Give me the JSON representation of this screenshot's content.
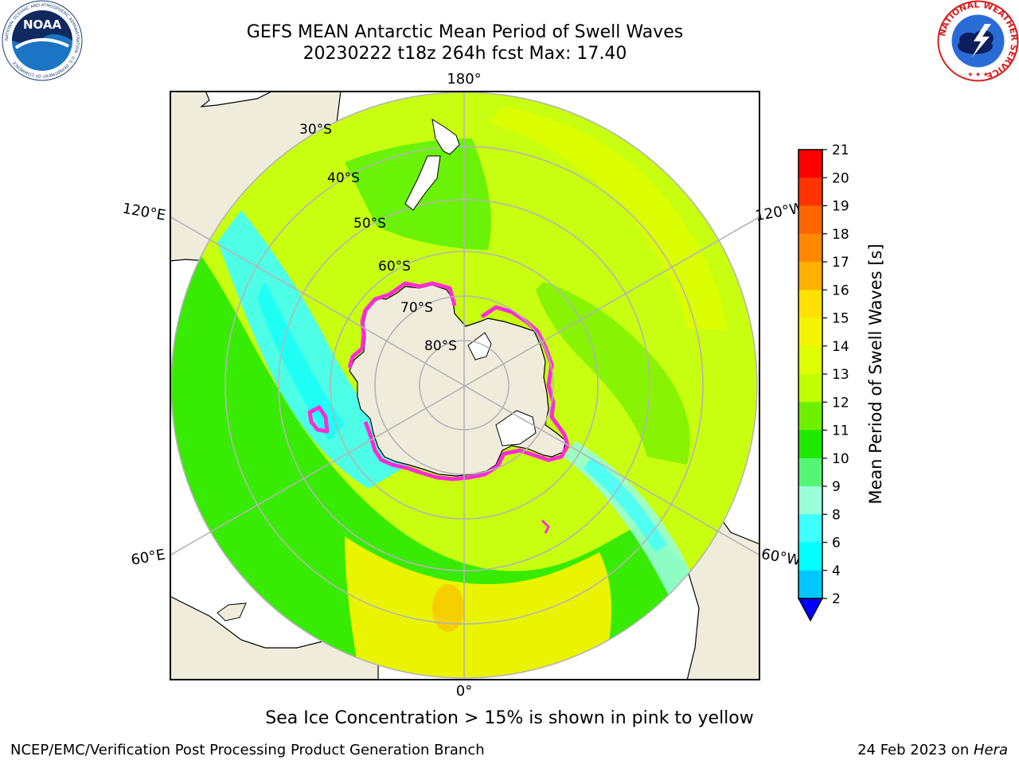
{
  "title": {
    "line1": "GEFS MEAN Antarctic Mean Period of Swell Waves",
    "line2": "20230222 t18z 264h fcst   Max: 17.40"
  },
  "logos": {
    "noaa_text": "NOAA",
    "noaa_ring": "NATIONAL OCEANIC AND ATMOSPHERIC ADMINISTRATION · U.S. DEPARTMENT OF COMMERCE",
    "nws_ring": "NATIONAL WEATHER SERVICE"
  },
  "map": {
    "projection": "south polar stereographic",
    "longitude_labels": [
      "180°",
      "120°E",
      "120°W",
      "60°E",
      "60°W",
      "0°"
    ],
    "latitude_labels": [
      "30°S",
      "40°S",
      "50°S",
      "60°S",
      "70°S",
      "80°S"
    ],
    "colors": {
      "land": "#efecdc",
      "ice_edge": "#ff2bd6",
      "grid": "#b4b4b4",
      "open_ocean_background": "#ffffff"
    }
  },
  "colorbar": {
    "label": "Mean Period of Swell Waves [s]",
    "ticks": [
      "21",
      "20",
      "19",
      "18",
      "17",
      "16",
      "15",
      "14",
      "13",
      "12",
      "11",
      "10",
      "9",
      "8",
      "6",
      "4",
      "2"
    ],
    "colors": [
      "#ff0000",
      "#ff3300",
      "#ff6600",
      "#ff8800",
      "#ffb000",
      "#ffe000",
      "#f4f400",
      "#ddff00",
      "#c0ff00",
      "#6cf000",
      "#1ee800",
      "#55f575",
      "#98ffd8",
      "#40ffff",
      "#00ffff",
      "#00c8ff",
      "#0066ff"
    ],
    "extend_color": "#0000ff"
  },
  "notes": {
    "sea_ice": "Sea Ice Concentration > 15% is shown in pink to yellow",
    "credit": "NCEP/EMC/Verification Post Processing Product Generation Branch",
    "date": "24 Feb 2023 on ",
    "host": "Hera"
  }
}
